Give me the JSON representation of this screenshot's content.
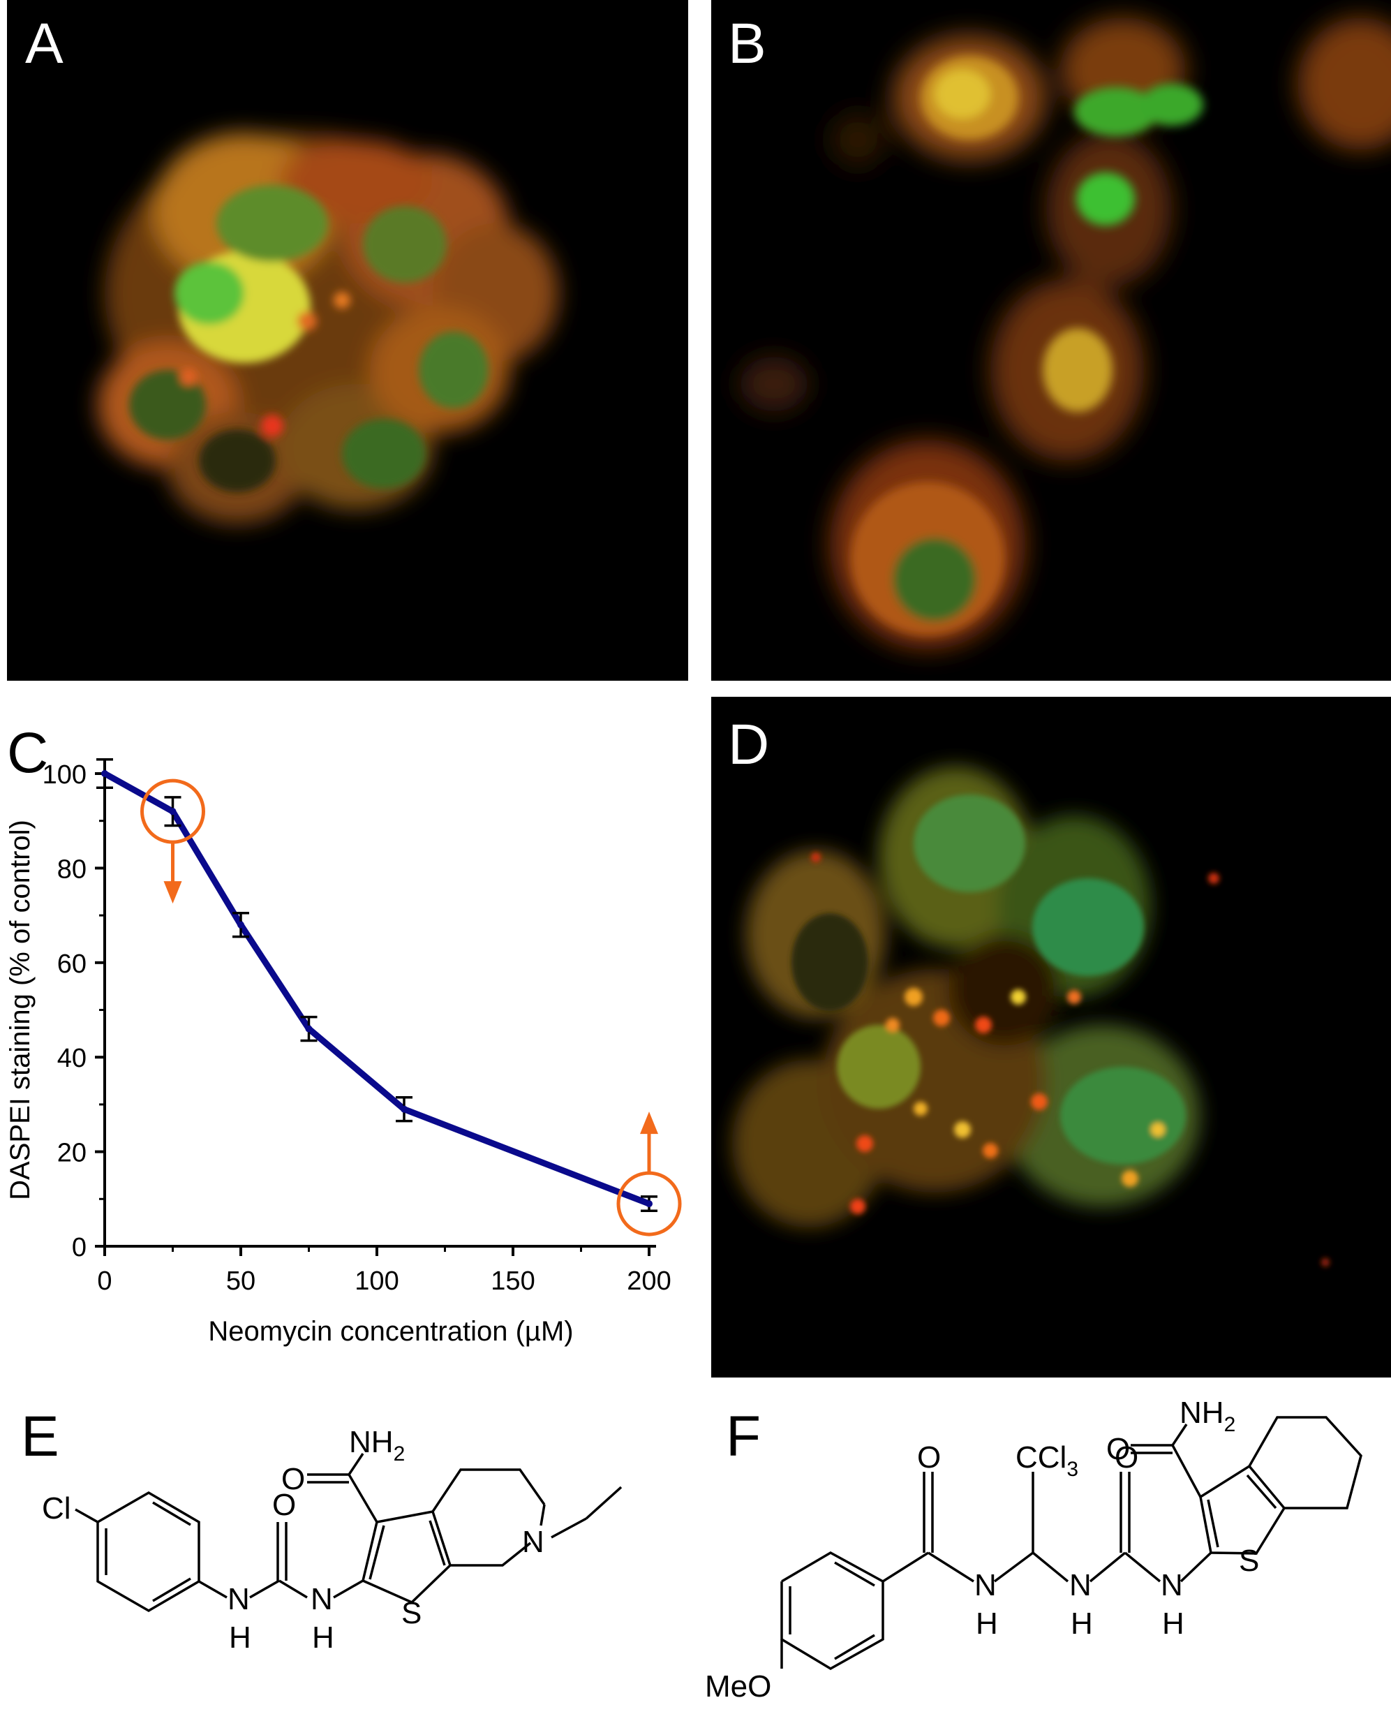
{
  "panels": {
    "A": {
      "label": "A"
    },
    "B": {
      "label": "B"
    },
    "C": {
      "label": "C"
    },
    "D": {
      "label": "D"
    },
    "E": {
      "label": "E"
    },
    "F": {
      "label": "F"
    }
  },
  "chart_data": {
    "type": "line",
    "ylabel": "DASPEI staining (% of control)",
    "xlabel": "Neomycin concentration (µM)",
    "x_ticks": [
      "0",
      "50",
      "100",
      "150",
      "200"
    ],
    "y_ticks": [
      "0",
      "20",
      "40",
      "60",
      "80",
      "100"
    ],
    "xlim": [
      0,
      200
    ],
    "ylim": [
      0,
      100
    ],
    "series": [
      {
        "x": [
          0,
          25,
          50,
          75,
          110,
          200
        ],
        "y": [
          100,
          92,
          68,
          46,
          29,
          9
        ],
        "err": [
          3,
          3,
          2.5,
          2.5,
          2.5,
          1.5
        ],
        "color": "#0a0a8c"
      }
    ],
    "annotations": [
      {
        "x": 25,
        "y": 92,
        "marker": "circle",
        "arrow": "down",
        "color": "#f26a1b"
      },
      {
        "x": 200,
        "y": 9,
        "marker": "circle",
        "arrow": "up",
        "color": "#f26a1b"
      }
    ]
  },
  "structures": {
    "E": {
      "atoms": {
        "cl": "Cl",
        "n": "N",
        "s": "S",
        "o1": "O",
        "o2": "O",
        "nh2": "NH",
        "nh2_sub": "2",
        "n1": "N",
        "h1": "H",
        "n2": "N",
        "h2": "H"
      }
    },
    "F": {
      "atoms": {
        "meo": "MeO",
        "o1": "O",
        "n1": "N",
        "h1": "H",
        "ccl3": "CCl",
        "ccl3_sub": "3",
        "n2": "N",
        "h2": "H",
        "o2": "O",
        "n3": "N",
        "h3": "H",
        "s": "S",
        "o3": "O",
        "nh2": "NH",
        "nh2_sub": "2"
      }
    }
  }
}
